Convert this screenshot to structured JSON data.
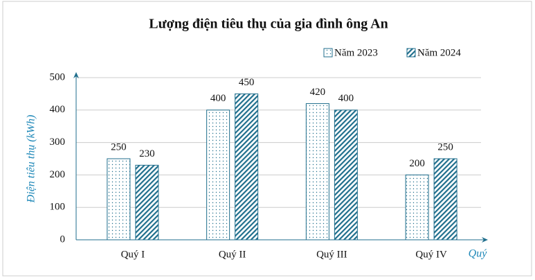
{
  "chart_data": {
    "type": "bar",
    "title": "Lượng điện tiêu thụ của gia đình ông An",
    "y_label": "Điện tiêu thụ (kWh)",
    "x_label": "Quý",
    "categories": [
      "Quý I",
      "Quý II",
      "Quý III",
      "Quý IV"
    ],
    "series": [
      {
        "name": "Năm 2023",
        "color": "#1f6e8c",
        "values": [
          250,
          400,
          420,
          200
        ]
      },
      {
        "name": "Năm 2024",
        "color": "#1f6e8c",
        "values": [
          230,
          450,
          400,
          250
        ]
      }
    ],
    "ylim": [
      0,
      500
    ],
    "yticks": [
      0,
      100,
      200,
      300,
      400,
      500
    ],
    "grid": true,
    "legend": "top-right"
  }
}
